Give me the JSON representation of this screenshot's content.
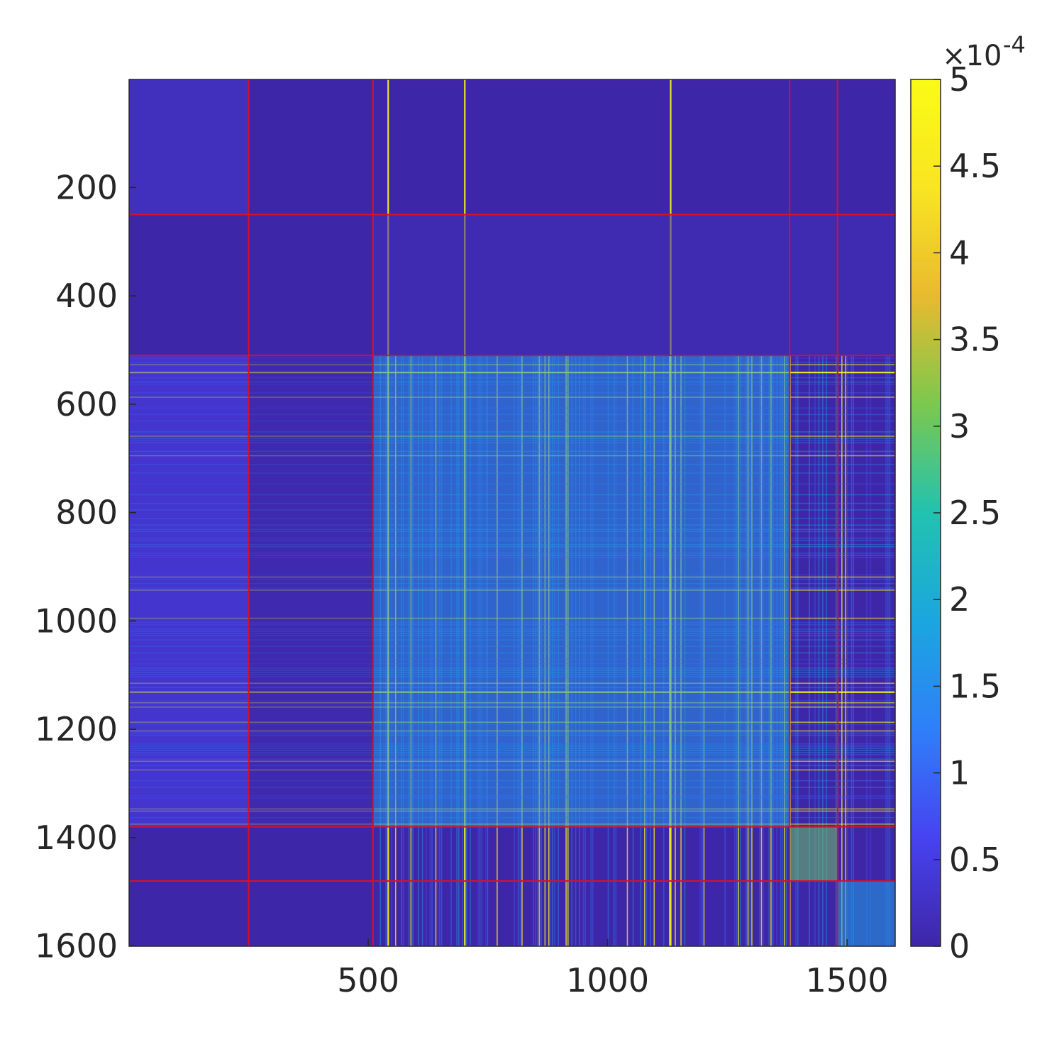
{
  "chart_data": {
    "type": "heatmap",
    "title": "",
    "xlabel": "",
    "ylabel": "",
    "matrix_size": 1600,
    "x_range": [
      1,
      1600
    ],
    "y_range": [
      1,
      1600
    ],
    "y_direction": "top-to-bottom",
    "x_ticks": [
      500,
      1000,
      1500
    ],
    "y_ticks": [
      200,
      400,
      600,
      800,
      1000,
      1200,
      1400,
      1600
    ],
    "colormap": "parula",
    "colormap_stops": [
      "#3e26a8",
      "#4743f0",
      "#2f7ff9",
      "#1ba6df",
      "#22c2b0",
      "#7cc84e",
      "#e8ba2f",
      "#f9e522",
      "#f9fb15"
    ],
    "colorbar": {
      "range": [
        0,
        5
      ],
      "ticks": [
        0,
        0.5,
        1,
        1.5,
        2,
        2.5,
        3,
        3.5,
        4,
        4.5,
        5
      ],
      "tick_labels": [
        "0",
        "0.5",
        "1",
        "1.5",
        "2",
        "2.5",
        "3",
        "3.5",
        "4",
        "4.5",
        "5"
      ],
      "exponent_label": "×10",
      "exponent": "-4",
      "location": "right"
    },
    "block_boundaries": [
      250,
      510,
      1380,
      1480
    ],
    "block_line_color": "#d8102a",
    "highlight_lines": [
      540,
      700,
      1130
    ],
    "regions": [
      {
        "rows": [
          1,
          250
        ],
        "cols": [
          1,
          250
        ],
        "level": 0.35
      },
      {
        "rows": [
          1,
          250
        ],
        "cols": [
          250,
          510
        ],
        "level": 0.02
      },
      {
        "rows": [
          250,
          510
        ],
        "cols": [
          1,
          510
        ],
        "level": 0.02
      },
      {
        "rows": [
          250,
          510
        ],
        "cols": [
          510,
          1600
        ],
        "level": 0.15
      },
      {
        "rows": [
          510,
          1380
        ],
        "cols": [
          510,
          1380
        ],
        "level": 1.6
      },
      {
        "rows": [
          510,
          1380
        ],
        "cols": [
          1,
          250
        ],
        "level": 0.6
      },
      {
        "rows": [
          510,
          1380
        ],
        "cols": [
          250,
          510
        ],
        "level": 0.1
      },
      {
        "rows": [
          1380,
          1480
        ],
        "cols": [
          1380,
          1480
        ],
        "level": 3.0
      },
      {
        "rows": [
          1480,
          1600
        ],
        "cols": [
          1480,
          1600
        ],
        "level": 1.8
      }
    ]
  }
}
